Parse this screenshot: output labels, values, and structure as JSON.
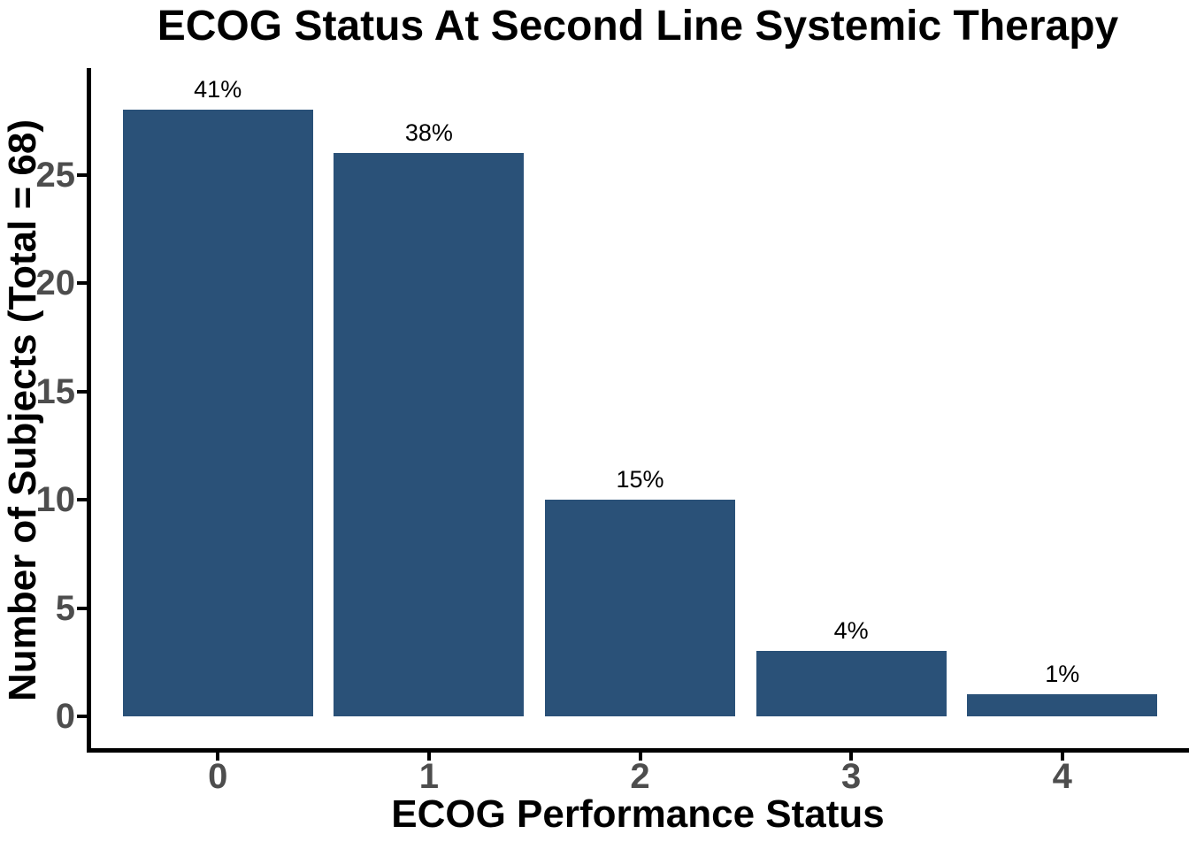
{
  "chart_data": {
    "type": "bar",
    "title": "ECOG Status At Second Line Systemic Therapy",
    "xlabel": "ECOG Performance Status",
    "ylabel": "Number of Subjects (Total = 68)",
    "total_subjects": 68,
    "categories": [
      "0",
      "1",
      "2",
      "3",
      "4"
    ],
    "values": [
      28,
      26,
      10,
      3,
      1
    ],
    "bar_labels": [
      "41%",
      "38%",
      "15%",
      "4%",
      "1%"
    ],
    "yticks": [
      0,
      5,
      10,
      15,
      20,
      25
    ],
    "ylim": [
      0,
      29.4
    ],
    "grid": false,
    "legend": "none",
    "colors": {
      "bar_fill": "#2A5178",
      "tick_label": "#4D4D4D",
      "axis_line": "#000000",
      "title_text": "#000000",
      "background": "#FFFFFF"
    }
  }
}
